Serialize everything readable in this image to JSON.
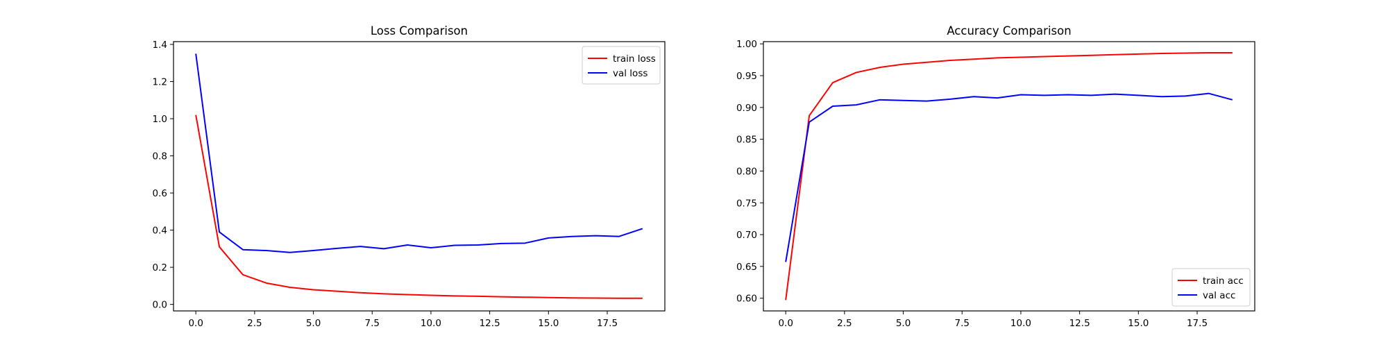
{
  "chart_data": [
    {
      "type": "line",
      "title": "Loss Comparison",
      "xlabel": "",
      "ylabel": "",
      "xlim": [
        -0.95,
        19.95
      ],
      "ylim": [
        -0.035,
        1.415
      ],
      "xticks": [
        0.0,
        2.5,
        5.0,
        7.5,
        10.0,
        12.5,
        15.0,
        17.5
      ],
      "xtick_labels": [
        "0.0",
        "2.5",
        "5.0",
        "7.5",
        "10.0",
        "12.5",
        "15.0",
        "17.5"
      ],
      "yticks": [
        0.0,
        0.2,
        0.4,
        0.6,
        0.8,
        1.0,
        1.2,
        1.4
      ],
      "ytick_labels": [
        "0.0",
        "0.2",
        "0.4",
        "0.6",
        "0.8",
        "1.0",
        "1.2",
        "1.4"
      ],
      "grid": false,
      "legend_position": "top-right",
      "x": [
        0,
        1,
        2,
        3,
        4,
        5,
        6,
        7,
        8,
        9,
        10,
        11,
        12,
        13,
        14,
        15,
        16,
        17,
        18,
        19
      ],
      "series": [
        {
          "name": "train loss",
          "color": "#ff0000",
          "values": [
            1.02,
            0.31,
            0.16,
            0.115,
            0.092,
            0.079,
            0.071,
            0.063,
            0.057,
            0.053,
            0.049,
            0.046,
            0.044,
            0.041,
            0.039,
            0.037,
            0.035,
            0.034,
            0.033,
            0.033
          ]
        },
        {
          "name": "val loss",
          "color": "#0000ff",
          "values": [
            1.35,
            0.39,
            0.295,
            0.29,
            0.28,
            0.29,
            0.302,
            0.312,
            0.3,
            0.32,
            0.305,
            0.318,
            0.32,
            0.328,
            0.33,
            0.358,
            0.366,
            0.37,
            0.366,
            0.408
          ]
        }
      ]
    },
    {
      "type": "line",
      "title": "Accuracy Comparison",
      "xlabel": "",
      "ylabel": "",
      "xlim": [
        -0.95,
        19.95
      ],
      "ylim": [
        0.58,
        1.0035
      ],
      "xticks": [
        0.0,
        2.5,
        5.0,
        7.5,
        10.0,
        12.5,
        15.0,
        17.5
      ],
      "xtick_labels": [
        "0.0",
        "2.5",
        "5.0",
        "7.5",
        "10.0",
        "12.5",
        "15.0",
        "17.5"
      ],
      "yticks": [
        0.6,
        0.65,
        0.7,
        0.75,
        0.8,
        0.85,
        0.9,
        0.95,
        1.0
      ],
      "ytick_labels": [
        "0.60",
        "0.65",
        "0.70",
        "0.75",
        "0.80",
        "0.85",
        "0.90",
        "0.95",
        "1.00"
      ],
      "grid": false,
      "legend_position": "bottom-right",
      "x": [
        0,
        1,
        2,
        3,
        4,
        5,
        6,
        7,
        8,
        9,
        10,
        11,
        12,
        13,
        14,
        15,
        16,
        17,
        18,
        19
      ],
      "series": [
        {
          "name": "train acc",
          "color": "#ff0000",
          "values": [
            0.597,
            0.887,
            0.939,
            0.955,
            0.963,
            0.968,
            0.971,
            0.974,
            0.976,
            0.978,
            0.979,
            0.98,
            0.981,
            0.982,
            0.983,
            0.984,
            0.985,
            0.9855,
            0.986,
            0.986
          ]
        },
        {
          "name": "val acc",
          "color": "#0000ff",
          "values": [
            0.657,
            0.877,
            0.902,
            0.904,
            0.912,
            0.911,
            0.91,
            0.913,
            0.917,
            0.915,
            0.92,
            0.919,
            0.92,
            0.919,
            0.921,
            0.919,
            0.917,
            0.918,
            0.922,
            0.912
          ]
        }
      ]
    }
  ]
}
